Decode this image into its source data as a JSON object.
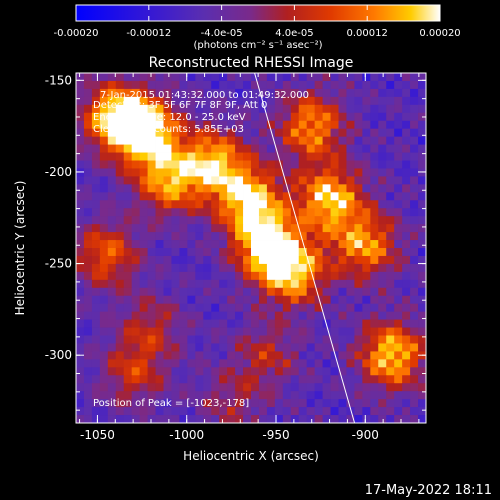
{
  "colorbar": {
    "tick_labels": [
      "-0.00020",
      "-0.00012",
      "-4.0e-05",
      "4.0e-05",
      "0.00012",
      "0.00020"
    ],
    "tick_values": [
      -0.0002,
      -0.00012,
      -4e-05,
      4e-05,
      0.00012,
      0.0002
    ],
    "range": [
      -0.0002,
      0.0002
    ],
    "units_label": "(photons cm⁻² s⁻¹ asec⁻²)",
    "colors": [
      "#0000ff",
      "#3a1bd0",
      "#5a2eb0",
      "#7a2a8a",
      "#b02020",
      "#e03a00",
      "#ff7a00",
      "#ffcc00",
      "#ffffff"
    ]
  },
  "chart_data": {
    "type": "heatmap",
    "title": "Reconstructed RHESSI Image",
    "xlabel": "Heliocentric X (arcsec)",
    "ylabel": "Heliocentric Y (arcsec)",
    "xlim": [
      -1062,
      -866
    ],
    "ylim": [
      -337,
      -146
    ],
    "x_ticks": [
      -1050,
      -1000,
      -950,
      -900
    ],
    "x_tick_labels": [
      "-1050",
      "-1000",
      "-950",
      "-900"
    ],
    "y_ticks": [
      -300,
      -250,
      -200,
      -150
    ],
    "y_tick_labels": [
      "-300",
      "-250",
      "-200",
      "-150"
    ],
    "grid": false,
    "annotations": [
      "7-Jan-2015 01:43:32.000 to 01:49:32.000",
      "Detectors: 3F 5F 6F 7F 8F 9F, Att 0",
      "Energy Range: 12.0 - 25.0 keV",
      "Clean. Total counts: 5.85E+03"
    ],
    "peak_label": "Position of Peak = [-1023,-178]",
    "peak": [
      -1023,
      -178
    ],
    "limb_line": {
      "x": [
        -962,
        -906
      ],
      "y": [
        -146,
        -337
      ]
    },
    "bright_regions": [
      {
        "x": -1040,
        "y": -170,
        "level": 0.9
      },
      {
        "x": -1023,
        "y": -178,
        "level": 1.0
      },
      {
        "x": -1010,
        "y": -205,
        "level": 0.8
      },
      {
        "x": -985,
        "y": -195,
        "level": 0.85
      },
      {
        "x": -965,
        "y": -215,
        "level": 0.9
      },
      {
        "x": -955,
        "y": -240,
        "level": 0.95
      },
      {
        "x": -940,
        "y": -255,
        "level": 0.85
      },
      {
        "x": -920,
        "y": -215,
        "level": 0.9
      },
      {
        "x": -930,
        "y": -175,
        "level": 0.8
      },
      {
        "x": -900,
        "y": -240,
        "level": 0.8
      },
      {
        "x": -885,
        "y": -300,
        "level": 0.9
      },
      {
        "x": -1045,
        "y": -245,
        "level": 0.7
      },
      {
        "x": -1020,
        "y": -285,
        "level": 0.55
      },
      {
        "x": -1030,
        "y": -310,
        "level": 0.6
      },
      {
        "x": -955,
        "y": -300,
        "level": 0.55
      },
      {
        "x": -975,
        "y": -325,
        "level": 0.5
      }
    ]
  },
  "footer": {
    "date": "17-May-2022 18:11"
  }
}
